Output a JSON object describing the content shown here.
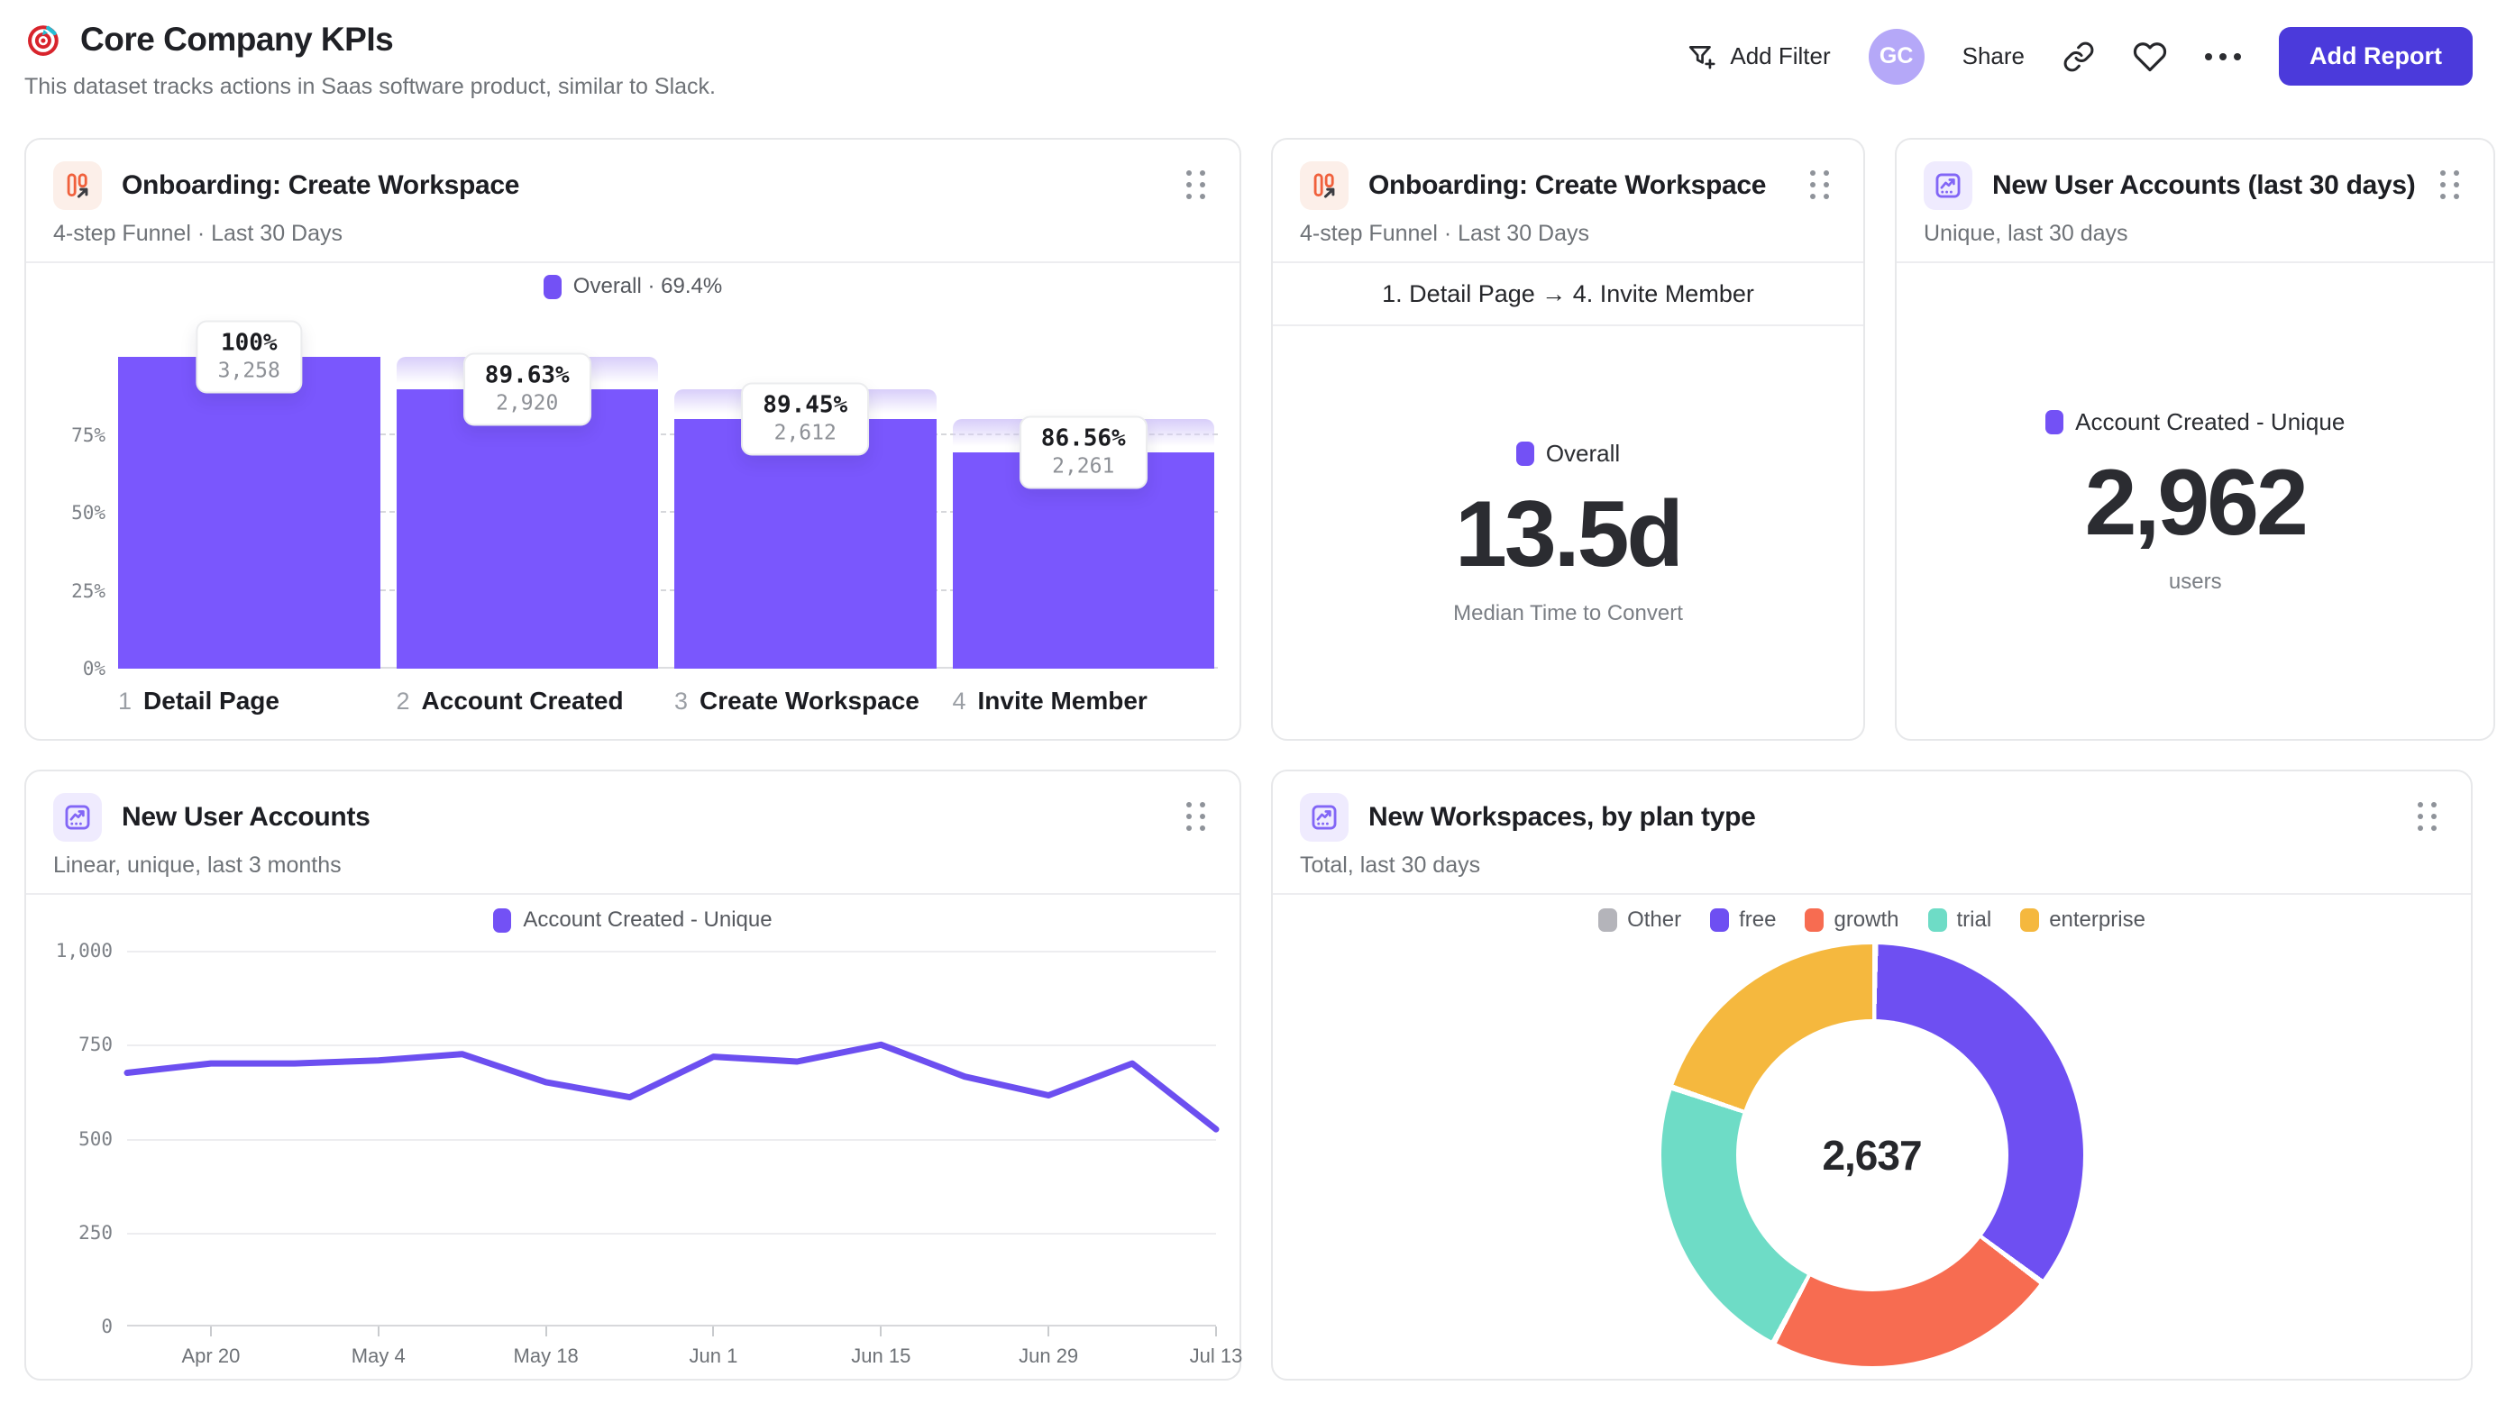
{
  "page": {
    "title": "Core Company KPIs",
    "subtitle": "This dataset tracks actions in Saas software product, similar to Slack."
  },
  "header": {
    "add_filter_label": "Add Filter",
    "avatar_initials": "GC",
    "share_label": "Share",
    "add_report_label": "Add Report"
  },
  "colors": {
    "purple_bar": "#7A57FD",
    "purple_swatch": "#7351F5",
    "line": "#6C4FF0",
    "ghost_top": "#D8CEFA",
    "accent_button": "#4B3ADB",
    "avatar_bg": "#B5A8F8",
    "icon_orange": "#F0603C",
    "icon_orange_bg": "#FCEFE9",
    "icon_purple": "#8266F6",
    "icon_purple_bg": "#EFEBFE"
  },
  "cards": {
    "funnel1": {
      "title": "Onboarding: Create Workspace",
      "subtitle": "4-step Funnel · Last 30 Days",
      "legend_label": "Overall · 69.4%"
    },
    "time_to_convert": {
      "title": "Onboarding: Create Workspace",
      "subtitle": "4-step Funnel · Last 30 Days",
      "range_label": "1. Detail Page → 4. Invite Member",
      "legend_label": "Overall",
      "value": "13.5d",
      "caption": "Median Time to Convert"
    },
    "new_accounts_30d": {
      "title": "New User Accounts (last 30 days)",
      "subtitle": "Unique, last 30 days",
      "legend_label": "Account Created - Unique",
      "value": "2,962",
      "caption": "users"
    },
    "accounts_trend": {
      "title": "New User Accounts",
      "subtitle": "Linear, unique, last 3 months",
      "legend_label": "Account Created - Unique"
    },
    "workspaces_by_plan": {
      "title": "New Workspaces, by plan type",
      "subtitle": "Total, last 30 days",
      "center_total": "2,637"
    }
  },
  "chart_data": [
    {
      "id": "funnel1",
      "type": "bar",
      "title": "Onboarding: Create Workspace",
      "step_nums": [
        "1",
        "2",
        "3",
        "4"
      ],
      "categories": [
        "Detail Page",
        "Account Created",
        "Create Workspace",
        "Invite Member"
      ],
      "values": [
        3258,
        2920,
        2612,
        2261
      ],
      "count_labels": [
        "3,258",
        "2,920",
        "2,612",
        "2,261"
      ],
      "pct_labels": [
        "100%",
        "89.63%",
        "89.45%",
        "86.56%"
      ],
      "overall_conversion": "69.4%",
      "y_ticks": [
        {
          "label": "75%",
          "v": 75
        },
        {
          "label": "50%",
          "v": 50
        },
        {
          "label": "25%",
          "v": 25
        },
        {
          "label": "0%",
          "v": 0
        }
      ],
      "ylim": [
        0,
        100
      ],
      "grid": "dashed"
    },
    {
      "id": "median_time",
      "type": "big-number",
      "series": "Overall",
      "value": "13.5d",
      "label": "Median Time to Convert"
    },
    {
      "id": "accounts_total",
      "type": "big-number",
      "series": "Account Created - Unique",
      "value": "2,962",
      "label": "users"
    },
    {
      "id": "accounts_line",
      "type": "line",
      "series_name": "Account Created - Unique",
      "values": [
        675,
        700,
        700,
        708,
        725,
        650,
        610,
        718,
        705,
        750,
        665,
        615,
        700,
        525
      ],
      "x_tick_labels": [
        "Apr 20",
        "May 4",
        "May 18",
        "Jun 1",
        "Jun 15",
        "Jun 29",
        "Jul 13"
      ],
      "y_ticks": [
        {
          "label": "1,000",
          "v": 1000
        },
        {
          "label": "750",
          "v": 750
        },
        {
          "label": "500",
          "v": 500
        },
        {
          "label": "250",
          "v": 250
        },
        {
          "label": "0",
          "v": 0
        }
      ],
      "ylim": [
        0,
        1000
      ],
      "grid": "solid"
    },
    {
      "id": "plan_donut",
      "type": "pie",
      "labels": [
        "Other",
        "free",
        "growth",
        "trial",
        "enterprise"
      ],
      "values": [
        0,
        923,
        593,
        593,
        528
      ],
      "colors": [
        "#B4B4BA",
        "#6E4FF2",
        "#F76C51",
        "#6EDCC6",
        "#F5B83E"
      ],
      "total_label": "2,637",
      "legend_position": "top"
    }
  ]
}
